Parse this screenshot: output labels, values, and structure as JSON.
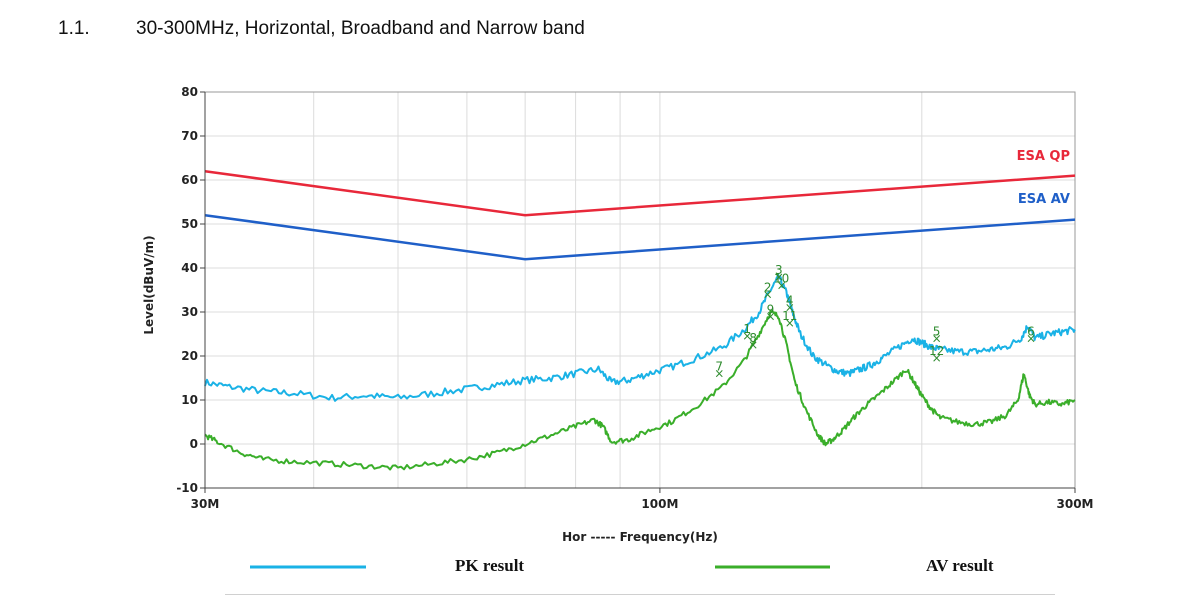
{
  "header": {
    "section_number": "1.1.",
    "title": "30-300MHz, Horizontal, Broadband and Narrow band"
  },
  "chart_data": {
    "type": "line",
    "title": "",
    "xlabel": "Hor ----- Frequency(Hz)",
    "ylabel": "Level(dBuV/m)",
    "xscale": "log",
    "xlim": [
      30,
      300
    ],
    "ylim": [
      -10,
      80
    ],
    "yticks": [
      -10,
      0,
      10,
      20,
      30,
      40,
      50,
      60,
      70,
      80
    ],
    "xtick_labels": [
      {
        "x": 30,
        "label": "30M"
      },
      {
        "x": 100,
        "label": "100M"
      },
      {
        "x": 300,
        "label": "300M"
      }
    ],
    "x_minor_gridlines": [
      40,
      50,
      60,
      70,
      80,
      90,
      200
    ],
    "grid": true,
    "limit_lines": [
      {
        "name": "ESA QP",
        "color": "#e8283a",
        "x": [
          30,
          70,
          300
        ],
        "y": [
          62,
          52,
          61
        ]
      },
      {
        "name": "ESA AV",
        "color": "#1f5fc8",
        "x": [
          30,
          70,
          300
        ],
        "y": [
          52,
          42,
          51
        ]
      }
    ],
    "series": [
      {
        "name": "PK result",
        "color": "#1ab2e6",
        "x": [
          30,
          32,
          35,
          38,
          42,
          46,
          50,
          55,
          60,
          65,
          70,
          75,
          80,
          85,
          88,
          92,
          97,
          103,
          110,
          118,
          125,
          130,
          134,
          137,
          140,
          142,
          145,
          150,
          155,
          160,
          165,
          170,
          175,
          180,
          188,
          195,
          200,
          205,
          210,
          220,
          230,
          240,
          250,
          260,
          265,
          270,
          280,
          290,
          300
        ],
        "y": [
          14,
          13,
          12,
          11.5,
          10.5,
          11,
          10.5,
          11.5,
          12.5,
          13.5,
          14.5,
          15,
          16,
          17,
          14,
          14.5,
          16,
          17.5,
          19.5,
          22,
          26,
          30,
          35,
          38,
          34,
          30,
          25,
          20,
          18,
          16.5,
          16,
          17,
          18,
          19.5,
          22,
          24,
          23,
          22,
          21.5,
          21,
          21,
          21.5,
          22,
          24,
          27,
          24,
          25,
          25.5,
          26
        ]
      },
      {
        "name": "AV result",
        "color": "#3aae2a",
        "x": [
          30,
          31,
          33,
          35,
          38,
          42,
          46,
          50,
          55,
          60,
          65,
          70,
          75,
          80,
          84,
          86,
          88,
          92,
          97,
          103,
          110,
          118,
          125,
          130,
          134,
          137,
          140,
          143,
          147,
          152,
          155,
          158,
          162,
          167,
          172,
          178,
          185,
          192,
          196,
          200,
          205,
          210,
          220,
          230,
          240,
          250,
          258,
          262,
          266,
          270,
          280,
          290,
          300
        ],
        "y": [
          2,
          0.5,
          -2,
          -3.5,
          -4,
          -4.5,
          -5,
          -5.5,
          -4.5,
          -3.5,
          -2,
          0,
          2,
          4,
          5.5,
          4,
          0.5,
          1,
          3,
          5,
          8.5,
          13,
          19,
          25,
          30,
          29,
          22,
          14,
          8,
          2,
          0,
          1,
          3,
          6,
          8.5,
          11,
          14,
          17,
          14,
          11,
          8,
          6,
          5,
          4.5,
          5,
          6.5,
          10,
          16,
          11,
          9,
          9.5,
          9,
          10
        ]
      }
    ],
    "markers": [
      {
        "label": "1",
        "x": 126,
        "y": 24.5,
        "color": "#2e8b2e"
      },
      {
        "label": "8",
        "x": 128,
        "y": 22.5,
        "color": "#2e8b2e"
      },
      {
        "label": "2",
        "x": 133,
        "y": 34,
        "color": "#2e8b2e"
      },
      {
        "label": "3",
        "x": 137,
        "y": 38,
        "color": "#2e8b2e"
      },
      {
        "label": "9",
        "x": 134,
        "y": 29,
        "color": "#2e8b2e"
      },
      {
        "label": "10",
        "x": 138,
        "y": 36,
        "color": "#2e8b2e"
      },
      {
        "label": "4",
        "x": 141,
        "y": 31,
        "color": "#2e8b2e"
      },
      {
        "label": "11",
        "x": 141,
        "y": 27.5,
        "color": "#2e8b2e"
      },
      {
        "label": "7",
        "x": 117,
        "y": 16,
        "color": "#2e8b2e"
      },
      {
        "label": "5",
        "x": 208,
        "y": 24,
        "color": "#2e8b2e"
      },
      {
        "label": "12",
        "x": 208,
        "y": 19.5,
        "color": "#2e8b2e"
      },
      {
        "label": "6",
        "x": 267,
        "y": 24,
        "color": "#2e8b2e"
      }
    ],
    "limit_labels": [
      {
        "text": "ESA QP",
        "color": "#e8283a"
      },
      {
        "text": "ESA AV",
        "color": "#1f5fc8"
      }
    ],
    "legend": {
      "placement": "bottom",
      "items": [
        {
          "label": "PK result",
          "color": "#1ab2e6"
        },
        {
          "label": "AV result",
          "color": "#3aae2a"
        }
      ]
    }
  }
}
